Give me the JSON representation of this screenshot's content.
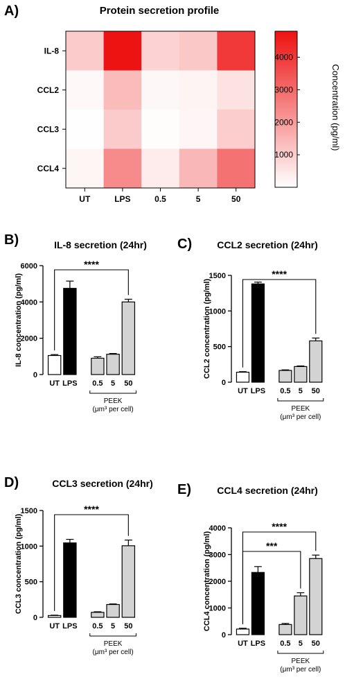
{
  "panels": [
    {
      "panel": "A)",
      "chart_data": {
        "type": "heatmap",
        "title": "Protein secretion profile",
        "rows": [
          "IL-8",
          "CCL2",
          "CCL3",
          "CCL4"
        ],
        "columns": [
          "UT",
          "LPS",
          "0.5",
          "5",
          "50"
        ],
        "values": [
          [
            1050,
            4750,
            900,
            1100,
            4000
          ],
          [
            140,
            1380,
            160,
            220,
            580
          ],
          [
            30,
            1050,
            70,
            180,
            1010
          ],
          [
            210,
            2330,
            380,
            1450,
            2850
          ]
        ],
        "colorbar": {
          "label": "Concentration (pg/ml)",
          "ticks": [
            1000,
            2000,
            3000,
            4000
          ],
          "range": [
            0,
            4800
          ],
          "low_color": "#ffffff",
          "high_color": "#ee1111"
        }
      }
    },
    {
      "panel": "B)",
      "chart_data": {
        "type": "bar",
        "title": "IL-8 secretion (24hr)",
        "ylabel": "IL-8 concentration (pg/ml)",
        "ylim": [
          0,
          6000
        ],
        "yticks": [
          0,
          2000,
          4000,
          6000
        ],
        "categories": [
          "UT",
          "LPS",
          "0.5",
          "5",
          "50"
        ],
        "values": [
          1050,
          4750,
          900,
          1120,
          4000
        ],
        "errors": [
          50,
          400,
          80,
          40,
          150
        ],
        "bar_colors": [
          "#ffffff",
          "#000000",
          "#d3d3d3",
          "#d3d3d3",
          "#d3d3d3"
        ],
        "group_label": "PEEK",
        "group_sublabel": "(μm³ per cell)",
        "significance": [
          {
            "from": "UT",
            "to": "50",
            "label": "****"
          }
        ]
      }
    },
    {
      "panel": "C)",
      "chart_data": {
        "type": "bar",
        "title": "CCL2 secretion (24hr)",
        "ylabel": "CCL2 concentration (pg/ml)",
        "ylim": [
          0,
          1500
        ],
        "yticks": [
          0,
          500,
          1000,
          1500
        ],
        "categories": [
          "UT",
          "LPS",
          "0.5",
          "5",
          "50"
        ],
        "values": [
          140,
          1380,
          165,
          220,
          580
        ],
        "errors": [
          8,
          25,
          8,
          8,
          40
        ],
        "bar_colors": [
          "#ffffff",
          "#000000",
          "#d3d3d3",
          "#d3d3d3",
          "#d3d3d3"
        ],
        "group_label": "PEEK",
        "group_sublabel": "(μm³ per cell)",
        "significance": [
          {
            "from": "UT",
            "to": "50",
            "label": "****"
          }
        ]
      }
    },
    {
      "panel": "D)",
      "chart_data": {
        "type": "bar",
        "title": "CCL3 secretion (24hr)",
        "ylabel": "CCL3 concentration (pg/ml)",
        "ylim": [
          0,
          1500
        ],
        "yticks": [
          0,
          500,
          1000,
          1500
        ],
        "categories": [
          "UT",
          "LPS",
          "0.5",
          "5",
          "50"
        ],
        "values": [
          25,
          1045,
          70,
          180,
          1005
        ],
        "errors": [
          5,
          50,
          8,
          8,
          80
        ],
        "bar_colors": [
          "#ffffff",
          "#000000",
          "#d3d3d3",
          "#d3d3d3",
          "#d3d3d3"
        ],
        "group_label": "PEEK",
        "group_sublabel": "(μm³ per cell)",
        "significance": [
          {
            "from": "UT",
            "to": "50",
            "label": "****"
          }
        ]
      }
    },
    {
      "panel": "E)",
      "chart_data": {
        "type": "bar",
        "title": "CCL4 secretion (24hr)",
        "ylabel": "CCL4 concentration (pg/ml)",
        "ylim": [
          0,
          4000
        ],
        "yticks": [
          0,
          1000,
          2000,
          3000,
          4000
        ],
        "categories": [
          "UT",
          "LPS",
          "0.5",
          "5",
          "50"
        ],
        "values": [
          210,
          2330,
          380,
          1450,
          2850
        ],
        "errors": [
          30,
          220,
          40,
          120,
          130
        ],
        "bar_colors": [
          "#ffffff",
          "#000000",
          "#d3d3d3",
          "#d3d3d3",
          "#d3d3d3"
        ],
        "group_label": "PEEK",
        "group_sublabel": "(μm³ per cell)",
        "significance": [
          {
            "from": "UT",
            "to": "50",
            "label": "****"
          },
          {
            "from": "UT",
            "to": "5",
            "label": "***"
          }
        ]
      }
    }
  ]
}
